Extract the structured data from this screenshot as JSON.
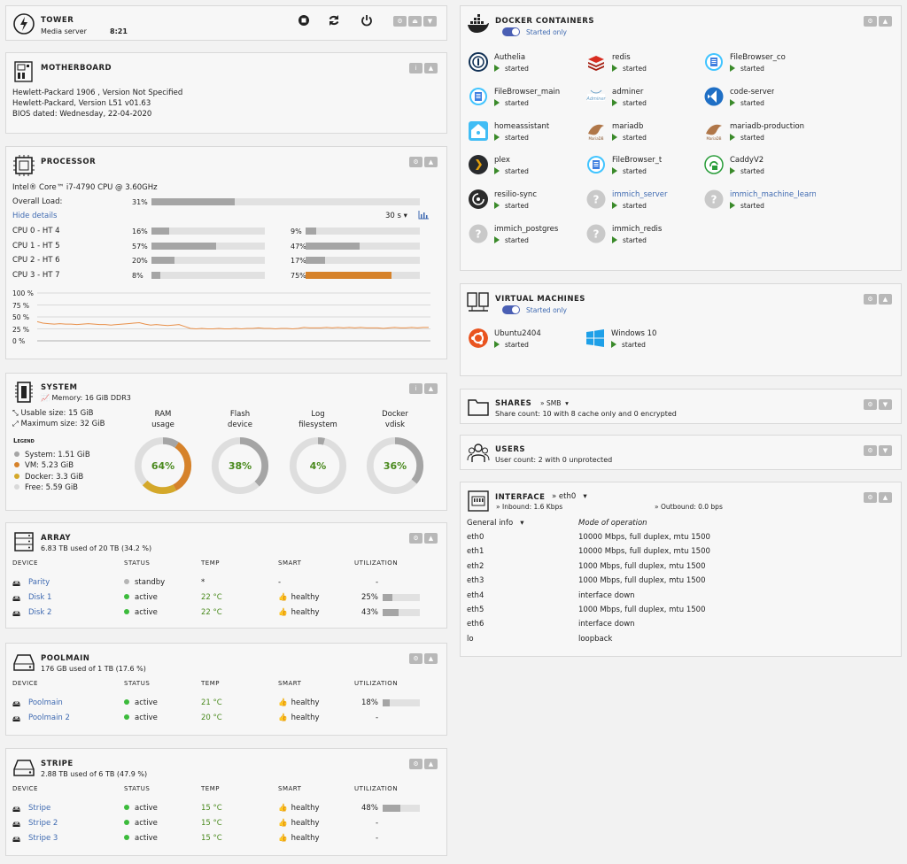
{
  "tower": {
    "title": "TOWER",
    "subtitle": "Media server",
    "time": "8:21"
  },
  "motherboard": {
    "title": "MOTHERBOARD",
    "line1": "Hewlett-Packard 1906 , Version Not Specified",
    "line2": "Hewlett-Packard, Version L51 v01.63",
    "line3": "BIOS dated: Wednesday, 22-04-2020"
  },
  "processor": {
    "title": "PROCESSOR",
    "cpu": "Intel® Core™ i7-4790 CPU @ 3.60GHz",
    "overall_label": "Overall Load:",
    "overall": "31%",
    "overall_value": 31,
    "hide": "Hide details",
    "interval": "30 s",
    "cores": [
      {
        "label": "CPU 0 - HT 4",
        "a": "16%",
        "av": 16,
        "b": "9%",
        "bv": 9
      },
      {
        "label": "CPU 1 - HT 5",
        "a": "57%",
        "av": 57,
        "b": "47%",
        "bv": 47
      },
      {
        "label": "CPU 2 - HT 6",
        "a": "20%",
        "av": 20,
        "b": "17%",
        "bv": 17
      },
      {
        "label": "CPU 3 - HT 7",
        "a": "8%",
        "av": 8,
        "b": "75%",
        "bv": 75
      }
    ],
    "graph_ticks": [
      "100 %",
      "75 %",
      "50 %",
      "25 %",
      "0 %"
    ],
    "graph_values": [
      40,
      37,
      36,
      35,
      36,
      35,
      35,
      34,
      35,
      36,
      35,
      34,
      34,
      33,
      34,
      35,
      36,
      37,
      38,
      35,
      33,
      34,
      33,
      32,
      33,
      34,
      30,
      26,
      25,
      26,
      25,
      25,
      26,
      25,
      25,
      26,
      25,
      26,
      26,
      27,
      26,
      26,
      25,
      26,
      26,
      25,
      26,
      28,
      27,
      27,
      27,
      28,
      27,
      28,
      27,
      28,
      27,
      28,
      27,
      27,
      27,
      26,
      27,
      28,
      27,
      27,
      28,
      27,
      28,
      28
    ]
  },
  "system": {
    "title": "SYSTEM",
    "memory": "Memory: 16 GiB DDR3",
    "usable": "Usable size: 15 GiB",
    "maximum": "Maximum size: 32 GiB",
    "legend_title": "Legend",
    "legend": [
      {
        "label": "System: 1.51 GiB",
        "color": "#a5a5a5"
      },
      {
        "label": "VM: 5.23 GiB",
        "color": "#d6822a"
      },
      {
        "label": "Docker: 3.3 GiB",
        "color": "#d4a82a"
      },
      {
        "label": "Free: 5.59 GiB",
        "color": "#d9d9d9"
      }
    ],
    "gauges": [
      {
        "l1": "RAM",
        "l2": "usage",
        "pct": "64%"
      },
      {
        "l1": "Flash",
        "l2": "device",
        "pct": "38%",
        "value": 38
      },
      {
        "l1": "Log",
        "l2": "filesystem",
        "pct": "4%",
        "value": 4
      },
      {
        "l1": "Docker",
        "l2": "vdisk",
        "pct": "36%",
        "value": 36
      }
    ],
    "ram_segments": [
      {
        "value": 9.4,
        "color": "#a5a5a5"
      },
      {
        "value": 32.7,
        "color": "#d6822a"
      },
      {
        "value": 20.6,
        "color": "#d4a82a"
      }
    ]
  },
  "headers": {
    "device": "DEVICE",
    "status": "STATUS",
    "temp": "TEMP",
    "smart": "SMART",
    "util": "UTILIZATION"
  },
  "array": {
    "title": "ARRAY",
    "sub": "6.83 TB used of 20 TB (34.2 %)",
    "rows": [
      {
        "name": "Parity",
        "status": "standby",
        "dot": "#b5b5b5",
        "temp": "*",
        "smart": "-",
        "util": "-"
      },
      {
        "name": "Disk 1",
        "status": "active",
        "dot": "#3cbb3c",
        "temp": "22 °C",
        "smart": "healthy",
        "util": "25%",
        "uv": 25
      },
      {
        "name": "Disk 2",
        "status": "active",
        "dot": "#3cbb3c",
        "temp": "22 °C",
        "smart": "healthy",
        "util": "43%",
        "uv": 43
      }
    ]
  },
  "poolmain": {
    "title": "POOLMAIN",
    "sub": "176 GB used of 1 TB (17.6 %)",
    "rows": [
      {
        "name": "Poolmain",
        "status": "active",
        "temp": "21 °C",
        "smart": "healthy",
        "util": "18%",
        "uv": 18
      },
      {
        "name": "Poolmain 2",
        "status": "active",
        "temp": "20 °C",
        "smart": "healthy",
        "util": "-"
      }
    ]
  },
  "stripe": {
    "title": "STRIPE",
    "sub": "2.88 TB used of 6 TB (47.9 %)",
    "rows": [
      {
        "name": "Stripe",
        "status": "active",
        "temp": "15 °C",
        "smart": "healthy",
        "util": "48%",
        "uv": 48
      },
      {
        "name": "Stripe 2",
        "status": "active",
        "temp": "15 °C",
        "smart": "healthy",
        "util": "-"
      },
      {
        "name": "Stripe 3",
        "status": "active",
        "temp": "15 °C",
        "smart": "healthy",
        "util": "-"
      }
    ]
  },
  "docker": {
    "title": "DOCKER CONTAINERS",
    "toggle": "Started only",
    "containers": [
      {
        "name": "Authelia",
        "status": "started",
        "icon": "authelia-icon"
      },
      {
        "name": "redis",
        "status": "started",
        "icon": "redis-icon"
      },
      {
        "name": "FileBrowser_co",
        "status": "started",
        "icon": "filebrowser-icon"
      },
      {
        "name": "FileBrowser_main",
        "status": "started",
        "icon": "filebrowser-icon"
      },
      {
        "name": "adminer",
        "status": "started",
        "icon": "adminer-icon"
      },
      {
        "name": "code-server",
        "status": "started",
        "icon": "vscode-icon"
      },
      {
        "name": "homeassistant",
        "status": "started",
        "icon": "homeassistant-icon"
      },
      {
        "name": "mariadb",
        "status": "started",
        "icon": "mariadb-icon"
      },
      {
        "name": "mariadb-production",
        "status": "started",
        "icon": "mariadb-icon"
      },
      {
        "name": "plex",
        "status": "started",
        "icon": "plex-icon"
      },
      {
        "name": "FileBrowser_t",
        "status": "started",
        "icon": "filebrowser-icon"
      },
      {
        "name": "CaddyV2",
        "status": "started",
        "icon": "caddy-icon"
      },
      {
        "name": "resilio-sync",
        "status": "started",
        "icon": "resilio-icon"
      },
      {
        "name": "immich_server",
        "status": "started",
        "icon": "unknown-icon",
        "link": true
      },
      {
        "name": "immich_machine_learning",
        "status": "started",
        "icon": "unknown-icon",
        "link": true
      },
      {
        "name": "immich_postgres",
        "status": "started",
        "icon": "unknown-icon"
      },
      {
        "name": "immich_redis",
        "status": "started",
        "icon": "unknown-icon"
      }
    ]
  },
  "vms": {
    "title": "VIRTUAL MACHINES",
    "toggle": "Started only",
    "items": [
      {
        "name": "Ubuntu2404",
        "status": "started"
      },
      {
        "name": "Windows 10",
        "status": "started"
      }
    ]
  },
  "shares": {
    "title": "SHARES",
    "type": "SMB",
    "sub": "Share count: 10 with 8 cache only and 0 encrypted"
  },
  "users": {
    "title": "USERS",
    "sub": "User count: 2 with 0 unprotected"
  },
  "interface": {
    "title": "INTERFACE",
    "iface": "eth0",
    "inbound": "Inbound: 1.6 Kbps",
    "outbound": "Outbound: 0.0 bps",
    "col1": "General info",
    "col2": "Mode of operation",
    "rows": [
      {
        "n": "eth0",
        "m": "10000 Mbps, full duplex, mtu 1500"
      },
      {
        "n": "eth1",
        "m": "10000 Mbps, full duplex, mtu 1500"
      },
      {
        "n": "eth2",
        "m": "1000 Mbps, full duplex, mtu 1500"
      },
      {
        "n": "eth3",
        "m": "1000 Mbps, full duplex, mtu 1500"
      },
      {
        "n": "eth4",
        "m": "interface down"
      },
      {
        "n": "eth5",
        "m": "1000 Mbps, full duplex, mtu 1500"
      },
      {
        "n": "eth6",
        "m": "interface down"
      },
      {
        "n": "lo",
        "m": "loopback"
      }
    ]
  }
}
